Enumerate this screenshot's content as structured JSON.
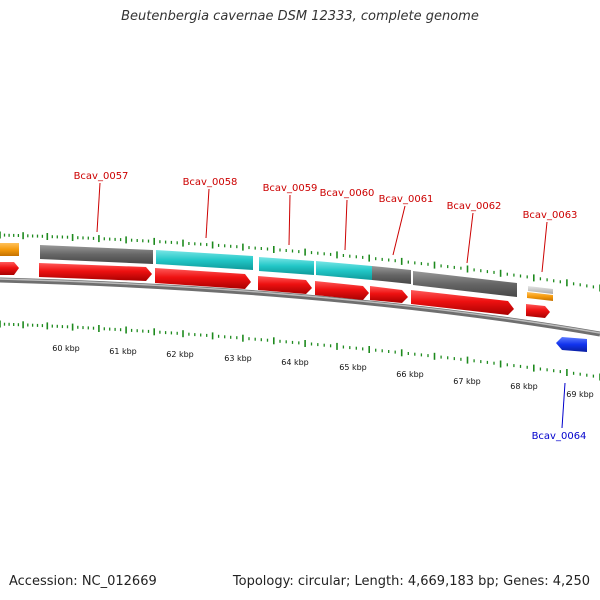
{
  "title": "Beutenbergia cavernae DSM 12333, complete genome",
  "footer": {
    "accession": "Accession: NC_012669",
    "summary": "Topology: circular; Length: 4,669,183 bp; Genes: 4,250"
  },
  "colors": {
    "cds": "#ee1111",
    "gene_gray": "#6a6a6a",
    "gene_cyan": "#22c7c7",
    "trna_orange": "#f59a0c",
    "light_gray": "#c8c8c8",
    "reverse_blue": "#1133ee",
    "label_red": "#cc0000",
    "label_blue": "#0000cc",
    "tick_green": "#1d8a1d"
  },
  "scale": {
    "labels": [
      "60 kbp",
      "61 kbp",
      "62 kbp",
      "63 kbp",
      "64 kbp",
      "65 kbp",
      "66 kbp",
      "67 kbp",
      "68 kbp",
      "69 kbp"
    ]
  },
  "genes": [
    {
      "label": "Bcav_0057",
      "color_key": "label_red"
    },
    {
      "label": "Bcav_0058",
      "color_key": "label_red"
    },
    {
      "label": "Bcav_0059",
      "color_key": "label_red"
    },
    {
      "label": "Bcav_0060",
      "color_key": "label_red"
    },
    {
      "label": "Bcav_0061",
      "color_key": "label_red"
    },
    {
      "label": "Bcav_0062",
      "color_key": "label_red"
    },
    {
      "label": "Bcav_0063",
      "color_key": "label_red"
    },
    {
      "label": "Bcav_0064",
      "color_key": "label_blue"
    }
  ]
}
